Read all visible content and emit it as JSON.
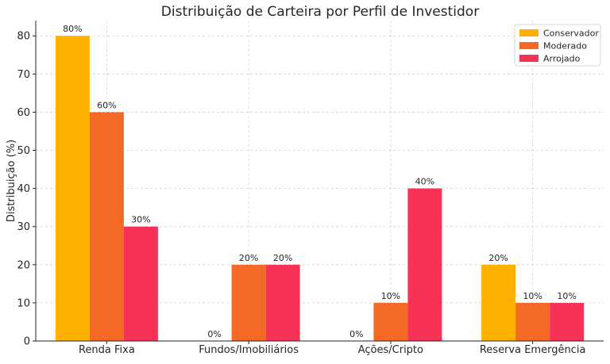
{
  "chart_data": {
    "type": "bar",
    "title": "Distribuição de Carteira por Perfil de Investidor",
    "xlabel": "",
    "ylabel": "Distribuição (%)",
    "ylim": [
      0,
      84
    ],
    "yticks": [
      0,
      10,
      20,
      30,
      40,
      50,
      60,
      70,
      80
    ],
    "grid": true,
    "legend_position": "top-right",
    "categories": [
      "Renda Fixa",
      "Fundos/Imobiliários",
      "Ações/Cripto",
      "Reserva Emergência"
    ],
    "series": [
      {
        "name": "Conservador",
        "color": "#FFB000",
        "values": [
          80,
          0,
          0,
          20
        ],
        "labels": [
          "80%",
          "0%",
          "0%",
          "20%"
        ]
      },
      {
        "name": "Moderado",
        "color": "#F46A25",
        "values": [
          60,
          20,
          10,
          10
        ],
        "labels": [
          "60%",
          "20%",
          "10%",
          "10%"
        ]
      },
      {
        "name": "Arrojado",
        "color": "#F63257",
        "values": [
          30,
          20,
          40,
          10
        ],
        "labels": [
          "30%",
          "20%",
          "40%",
          "10%"
        ]
      }
    ]
  }
}
